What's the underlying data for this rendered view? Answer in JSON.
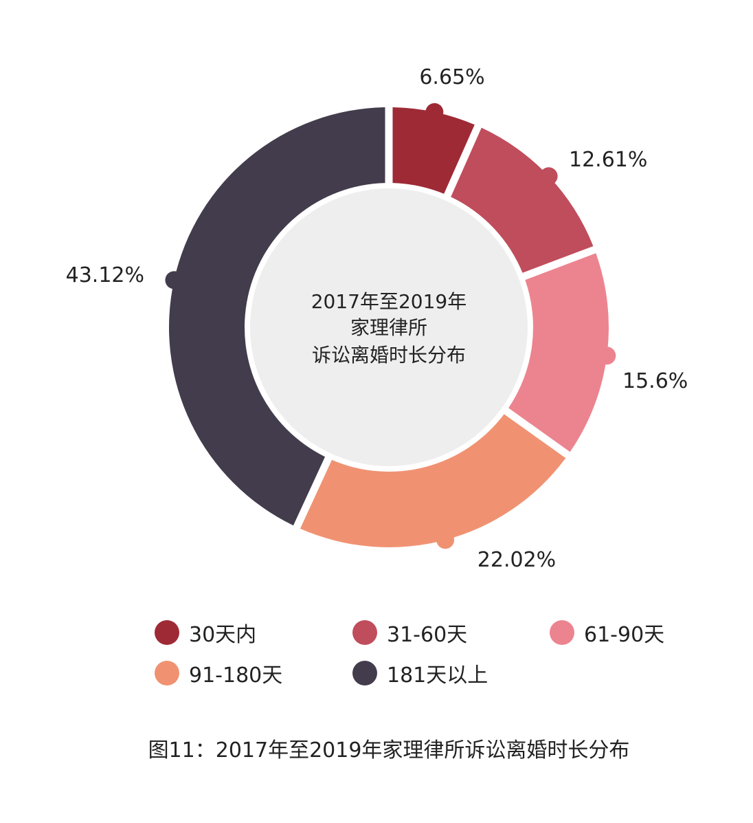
{
  "chart_data": {
    "type": "pie",
    "variant": "donut",
    "center_text": [
      "2017年至2019年",
      "家理律所",
      "诉讼离婚时长分布"
    ],
    "caption": "图11：2017年至2019年家理律所诉讼离婚时长分布",
    "legend_placement": "bottom",
    "slices": [
      {
        "label": "30天内",
        "value": 6.65,
        "value_label": "6.65%",
        "color": "#9e2a36"
      },
      {
        "label": "31-60天",
        "value": 12.61,
        "value_label": "12.61%",
        "color": "#c04d5c"
      },
      {
        "label": "61-90天",
        "value": 15.6,
        "value_label": "15.6%",
        "color": "#ec8490"
      },
      {
        "label": "91-180天",
        "value": 22.02,
        "value_label": "22.02%",
        "color": "#f09272"
      },
      {
        "label": "181天以上",
        "value": 43.12,
        "value_label": "43.12%",
        "color": "#433c4c"
      }
    ],
    "center_fill": "#eeeeee"
  }
}
